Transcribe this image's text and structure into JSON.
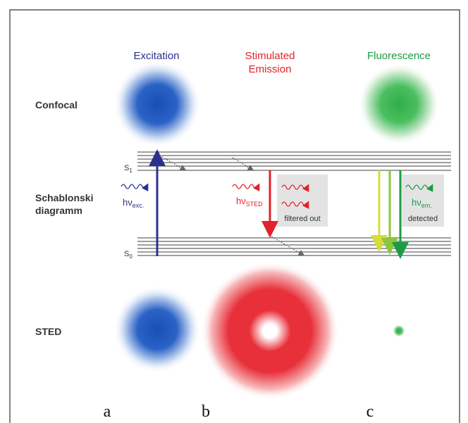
{
  "columns": [
    {
      "title": "Excitation"
    },
    {
      "title": "Stimulated\nEmission"
    },
    {
      "title": "Fluorescence"
    }
  ],
  "rows": {
    "confocal": "Confocal",
    "diagram": "Schablonski\ndiagramm",
    "sted": "STED"
  },
  "levels": {
    "s1": {
      "main": "S",
      "sub": "1"
    },
    "s0": {
      "main": "S",
      "sub": "0"
    }
  },
  "photons": {
    "excitation": {
      "main": "hν",
      "sub": "exc."
    },
    "sted": {
      "main": "hν",
      "sub": "STED"
    },
    "emission": {
      "main": "hν",
      "sub": "em."
    }
  },
  "boxes": {
    "filtered": "filtered out",
    "detected": "detected"
  },
  "panels": [
    "a",
    "b",
    "c"
  ]
}
